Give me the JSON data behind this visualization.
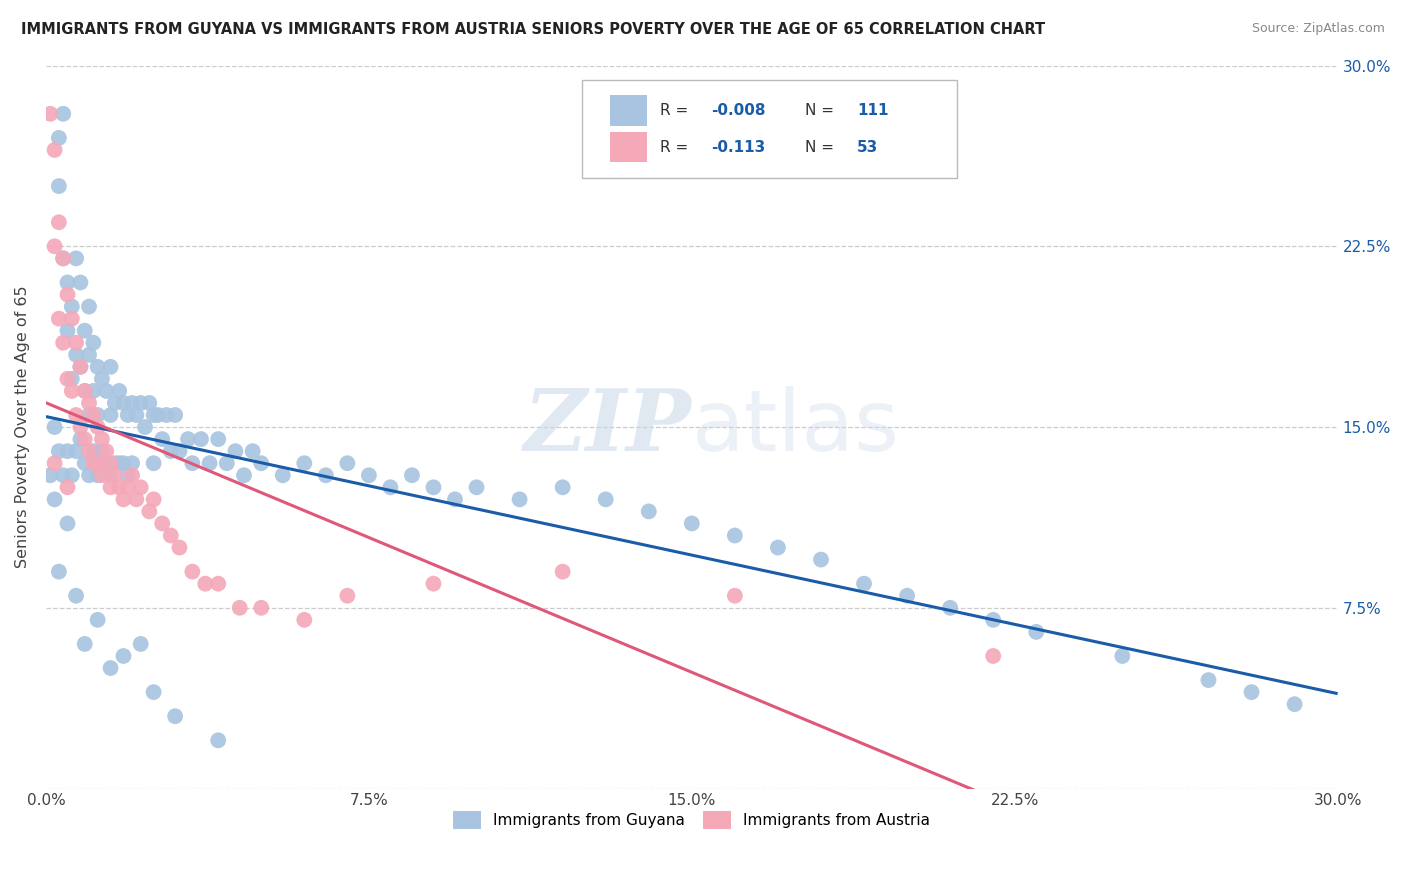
{
  "title": "IMMIGRANTS FROM GUYANA VS IMMIGRANTS FROM AUSTRIA SENIORS POVERTY OVER THE AGE OF 65 CORRELATION CHART",
  "source": "Source: ZipAtlas.com",
  "ylabel": "Seniors Poverty Over the Age of 65",
  "xlim": [
    0.0,
    0.3
  ],
  "ylim": [
    0.0,
    0.3
  ],
  "guyana_color": "#a8c4e0",
  "austria_color": "#f4a8b8",
  "guyana_R": -0.008,
  "guyana_N": 111,
  "austria_R": -0.113,
  "austria_N": 53,
  "trend_guyana_color": "#1a5ca8",
  "trend_austria_color": "#e05878",
  "watermark_color": "#c8d8e8",
  "background_color": "#ffffff",
  "guyana_x": [
    0.001,
    0.002,
    0.002,
    0.003,
    0.003,
    0.003,
    0.004,
    0.004,
    0.004,
    0.005,
    0.005,
    0.005,
    0.006,
    0.006,
    0.006,
    0.007,
    0.007,
    0.007,
    0.008,
    0.008,
    0.008,
    0.009,
    0.009,
    0.009,
    0.01,
    0.01,
    0.01,
    0.01,
    0.011,
    0.011,
    0.011,
    0.012,
    0.012,
    0.012,
    0.013,
    0.013,
    0.014,
    0.014,
    0.015,
    0.015,
    0.015,
    0.016,
    0.016,
    0.017,
    0.017,
    0.018,
    0.018,
    0.019,
    0.019,
    0.02,
    0.02,
    0.021,
    0.022,
    0.023,
    0.024,
    0.025,
    0.025,
    0.026,
    0.027,
    0.028,
    0.029,
    0.03,
    0.031,
    0.033,
    0.034,
    0.036,
    0.038,
    0.04,
    0.042,
    0.044,
    0.046,
    0.048,
    0.05,
    0.055,
    0.06,
    0.065,
    0.07,
    0.075,
    0.08,
    0.085,
    0.09,
    0.095,
    0.1,
    0.11,
    0.12,
    0.13,
    0.14,
    0.15,
    0.16,
    0.17,
    0.18,
    0.19,
    0.2,
    0.21,
    0.22,
    0.23,
    0.25,
    0.27,
    0.28,
    0.29,
    0.003,
    0.005,
    0.007,
    0.009,
    0.012,
    0.015,
    0.018,
    0.022,
    0.025,
    0.03,
    0.04
  ],
  "guyana_y": [
    0.13,
    0.15,
    0.12,
    0.27,
    0.25,
    0.14,
    0.28,
    0.22,
    0.13,
    0.21,
    0.19,
    0.14,
    0.2,
    0.17,
    0.13,
    0.22,
    0.18,
    0.14,
    0.21,
    0.175,
    0.145,
    0.19,
    0.165,
    0.135,
    0.2,
    0.18,
    0.155,
    0.13,
    0.185,
    0.165,
    0.14,
    0.175,
    0.155,
    0.13,
    0.17,
    0.14,
    0.165,
    0.135,
    0.175,
    0.155,
    0.13,
    0.16,
    0.135,
    0.165,
    0.135,
    0.16,
    0.135,
    0.155,
    0.13,
    0.16,
    0.135,
    0.155,
    0.16,
    0.15,
    0.16,
    0.155,
    0.135,
    0.155,
    0.145,
    0.155,
    0.14,
    0.155,
    0.14,
    0.145,
    0.135,
    0.145,
    0.135,
    0.145,
    0.135,
    0.14,
    0.13,
    0.14,
    0.135,
    0.13,
    0.135,
    0.13,
    0.135,
    0.13,
    0.125,
    0.13,
    0.125,
    0.12,
    0.125,
    0.12,
    0.125,
    0.12,
    0.115,
    0.11,
    0.105,
    0.1,
    0.095,
    0.085,
    0.08,
    0.075,
    0.07,
    0.065,
    0.055,
    0.045,
    0.04,
    0.035,
    0.09,
    0.11,
    0.08,
    0.06,
    0.07,
    0.05,
    0.055,
    0.06,
    0.04,
    0.03,
    0.02
  ],
  "austria_x": [
    0.001,
    0.002,
    0.002,
    0.003,
    0.003,
    0.004,
    0.004,
    0.005,
    0.005,
    0.006,
    0.006,
    0.007,
    0.007,
    0.008,
    0.008,
    0.009,
    0.009,
    0.01,
    0.01,
    0.011,
    0.011,
    0.012,
    0.012,
    0.013,
    0.013,
    0.014,
    0.015,
    0.015,
    0.016,
    0.017,
    0.018,
    0.019,
    0.02,
    0.021,
    0.022,
    0.024,
    0.025,
    0.027,
    0.029,
    0.031,
    0.034,
    0.037,
    0.04,
    0.045,
    0.05,
    0.06,
    0.07,
    0.09,
    0.12,
    0.16,
    0.002,
    0.005,
    0.22
  ],
  "austria_y": [
    0.28,
    0.265,
    0.225,
    0.235,
    0.195,
    0.22,
    0.185,
    0.205,
    0.17,
    0.195,
    0.165,
    0.185,
    0.155,
    0.175,
    0.15,
    0.165,
    0.145,
    0.16,
    0.14,
    0.155,
    0.135,
    0.15,
    0.135,
    0.145,
    0.13,
    0.14,
    0.135,
    0.125,
    0.13,
    0.125,
    0.12,
    0.125,
    0.13,
    0.12,
    0.125,
    0.115,
    0.12,
    0.11,
    0.105,
    0.1,
    0.09,
    0.085,
    0.085,
    0.075,
    0.075,
    0.07,
    0.08,
    0.085,
    0.09,
    0.08,
    0.135,
    0.125,
    0.055
  ]
}
